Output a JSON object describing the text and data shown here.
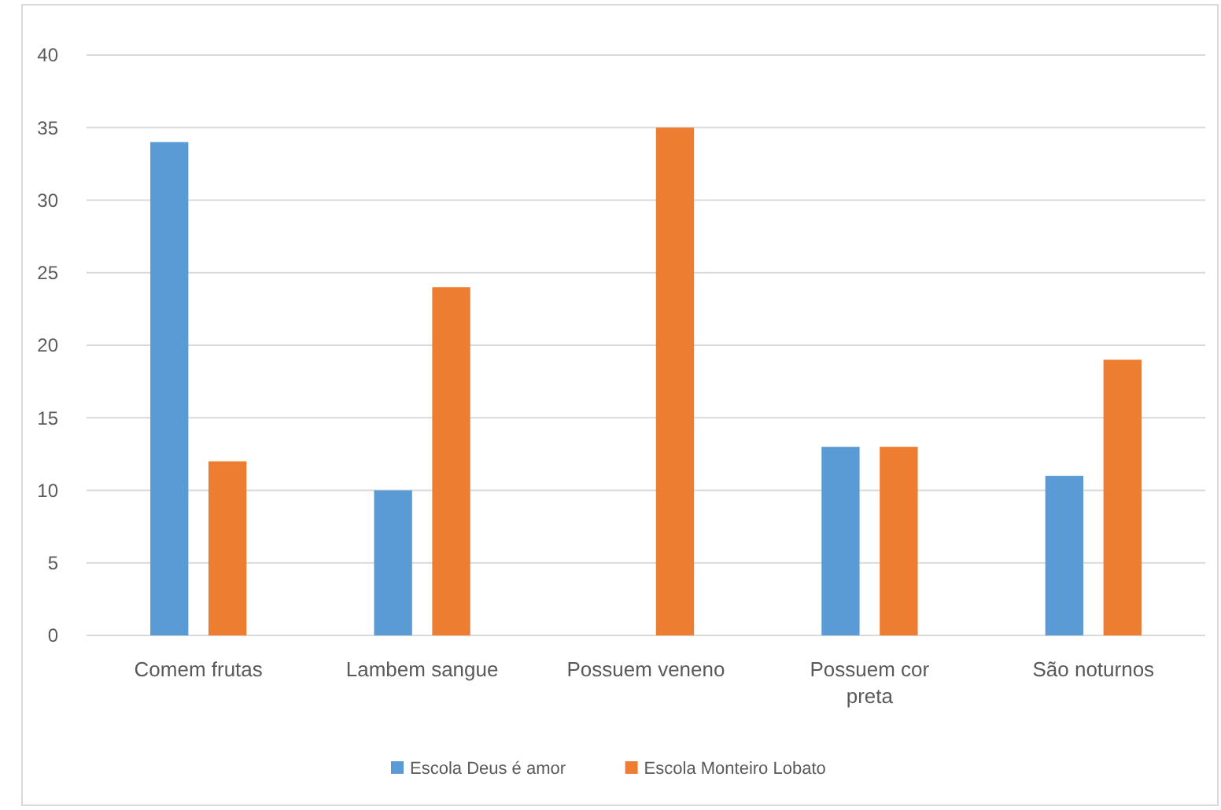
{
  "chart_data": {
    "type": "bar",
    "categories": [
      "Comem frutas",
      "Lambem sangue",
      "Possuem veneno",
      "Possuem cor preta",
      "São noturnos"
    ],
    "series": [
      {
        "name": "Escola Deus é amor",
        "color": "#5b9bd5",
        "values": [
          34,
          10,
          0,
          13,
          11
        ]
      },
      {
        "name": "Escola Monteiro Lobato",
        "color": "#ed7d31",
        "values": [
          12,
          24,
          35,
          13,
          19
        ]
      }
    ],
    "ylim": [
      0,
      40
    ],
    "yticks": [
      0,
      5,
      10,
      15,
      20,
      25,
      30,
      35,
      40
    ],
    "grid": "y",
    "legend": "bottom"
  }
}
